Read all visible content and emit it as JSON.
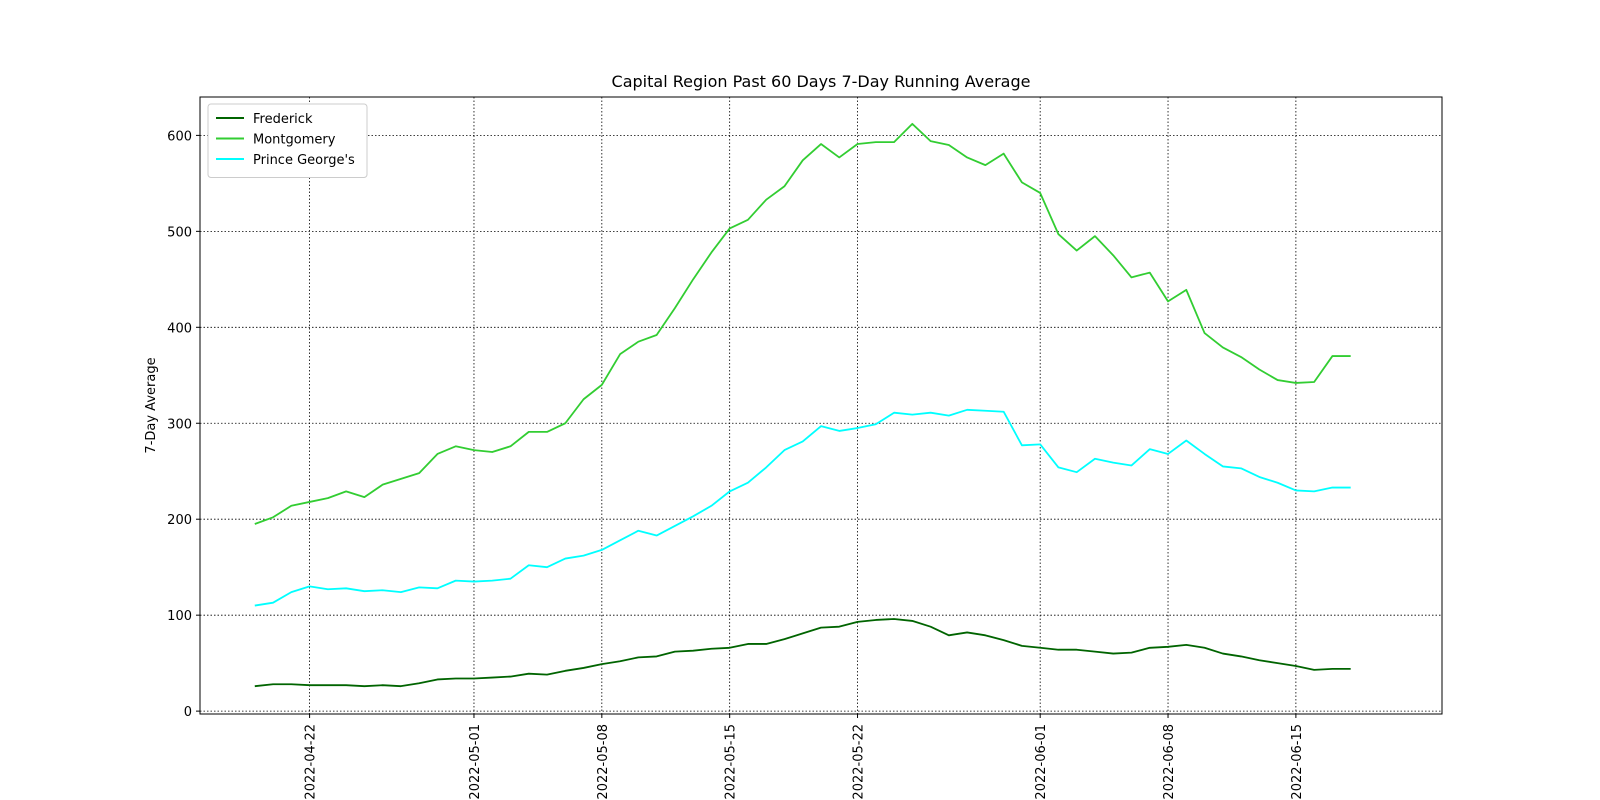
{
  "chart_data": {
    "type": "line",
    "title": "Capital Region Past 60 Days 7-Day Running Average",
    "xlabel": "",
    "ylabel": "7-Day Average",
    "x_dates": [
      "2022-04-19",
      "2022-04-20",
      "2022-04-21",
      "2022-04-22",
      "2022-04-23",
      "2022-04-24",
      "2022-04-25",
      "2022-04-26",
      "2022-04-27",
      "2022-04-28",
      "2022-04-29",
      "2022-04-30",
      "2022-05-01",
      "2022-05-02",
      "2022-05-03",
      "2022-05-04",
      "2022-05-05",
      "2022-05-06",
      "2022-05-07",
      "2022-05-08",
      "2022-05-09",
      "2022-05-10",
      "2022-05-11",
      "2022-05-12",
      "2022-05-13",
      "2022-05-14",
      "2022-05-15",
      "2022-05-16",
      "2022-05-17",
      "2022-05-18",
      "2022-05-19",
      "2022-05-20",
      "2022-05-21",
      "2022-05-22",
      "2022-05-23",
      "2022-05-24",
      "2022-05-25",
      "2022-05-26",
      "2022-05-27",
      "2022-05-28",
      "2022-05-29",
      "2022-05-30",
      "2022-05-31",
      "2022-06-01",
      "2022-06-02",
      "2022-06-03",
      "2022-06-04",
      "2022-06-05",
      "2022-06-06",
      "2022-06-07",
      "2022-06-08",
      "2022-06-09",
      "2022-06-10",
      "2022-06-11",
      "2022-06-12",
      "2022-06-13",
      "2022-06-14",
      "2022-06-15",
      "2022-06-16",
      "2022-06-17",
      "2022-06-18"
    ],
    "xticks": [
      "2022-04-22",
      "2022-05-01",
      "2022-05-08",
      "2022-05-15",
      "2022-05-22",
      "2022-06-01",
      "2022-06-08",
      "2022-06-15"
    ],
    "xlim": [
      "2022-04-16",
      "2022-06-23"
    ],
    "ylim": [
      -3,
      640
    ],
    "yticks": [
      0,
      100,
      200,
      300,
      400,
      500,
      600
    ],
    "grid": true,
    "grid_style": "dotted",
    "legend_position": "top-left",
    "series": [
      {
        "name": "Frederick",
        "color": "#006400",
        "values": [
          26,
          28,
          28,
          27,
          27,
          27,
          26,
          27,
          26,
          29,
          33,
          34,
          34,
          35,
          36,
          39,
          38,
          42,
          45,
          49,
          52,
          56,
          57,
          62,
          63,
          65,
          66,
          70,
          70,
          75,
          81,
          87,
          88,
          93,
          95,
          96,
          94,
          88,
          79,
          82,
          79,
          74,
          68,
          66,
          64,
          64,
          62,
          60,
          61,
          66,
          67,
          69,
          66,
          60,
          57,
          53,
          50,
          47,
          43,
          44,
          44
        ]
      },
      {
        "name": "Montgomery",
        "color": "#32cd32",
        "values": [
          195,
          202,
          214,
          218,
          222,
          229,
          223,
          236,
          242,
          248,
          268,
          276,
          272,
          270,
          276,
          291,
          291,
          300,
          325,
          340,
          372,
          385,
          392,
          420,
          450,
          478,
          503,
          512,
          533,
          547,
          574,
          591,
          577,
          591,
          593,
          593,
          612,
          594,
          590,
          577,
          569,
          581,
          551,
          540,
          497,
          480,
          495,
          475,
          452,
          457,
          427,
          439,
          394,
          379,
          369,
          356,
          345,
          342,
          343,
          370,
          370
        ]
      },
      {
        "name": "Prince George's",
        "color": "#00ffff",
        "values": [
          110,
          113,
          124,
          130,
          127,
          128,
          125,
          126,
          124,
          129,
          128,
          136,
          135,
          136,
          138,
          152,
          150,
          159,
          162,
          168,
          178,
          188,
          183,
          193,
          203,
          214,
          229,
          238,
          254,
          272,
          281,
          297,
          292,
          295,
          299,
          311,
          309,
          311,
          308,
          314,
          313,
          312,
          277,
          278,
          254,
          249,
          263,
          259,
          256,
          273,
          268,
          282,
          268,
          255,
          253,
          244,
          238,
          230,
          229,
          233,
          233
        ]
      }
    ]
  }
}
